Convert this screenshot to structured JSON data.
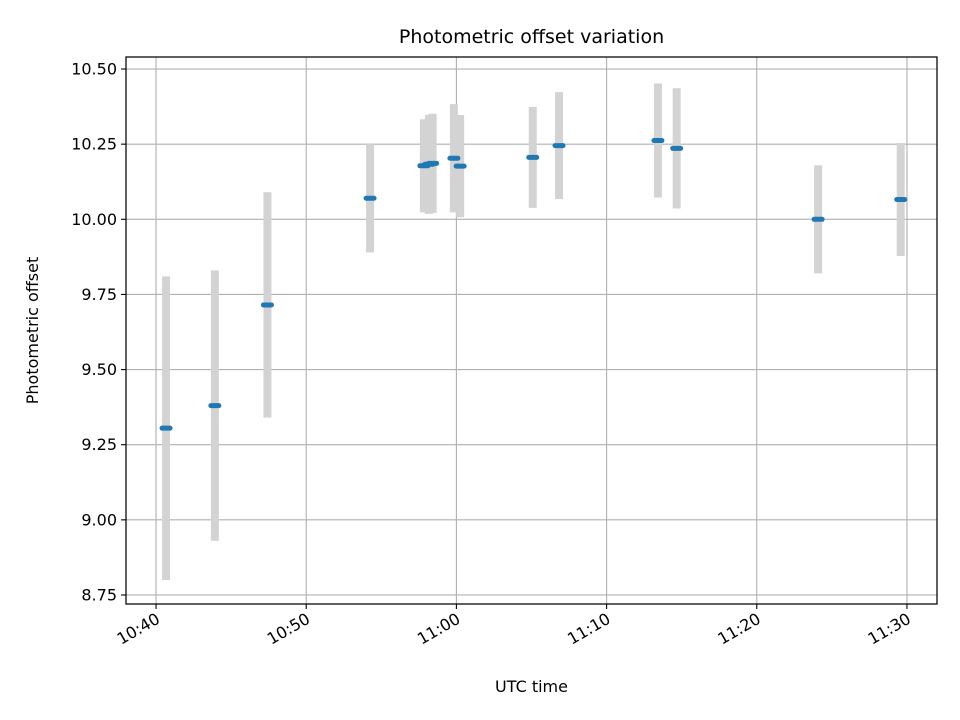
{
  "chart_data": {
    "type": "scatter",
    "title": "Photometric offset variation",
    "xlabel": "UTC time",
    "ylabel": "Photometric offset",
    "x_unit": "HH:MM (UTC)",
    "xlim": [
      "10:38",
      "11:32"
    ],
    "ylim": [
      8.72,
      10.54
    ],
    "x_ticks": [
      "10:40",
      "10:50",
      "11:00",
      "11:10",
      "11:20",
      "11:30"
    ],
    "y_ticks": [
      "8.75",
      "9.00",
      "9.25",
      "9.50",
      "9.75",
      "10.00",
      "10.25",
      "10.50"
    ],
    "grid": true,
    "legend": "none",
    "colors": {
      "points": "#1f77b4",
      "error_bars": "#d3d3d3",
      "grid": "#b0b0b0"
    },
    "points": [
      {
        "x": "10:40:40",
        "y": 9.305,
        "yerr": 0.505
      },
      {
        "x": "10:43:55",
        "y": 9.38,
        "yerr": 0.45
      },
      {
        "x": "10:47:25",
        "y": 9.715,
        "yerr": 0.375
      },
      {
        "x": "10:54:15",
        "y": 10.07,
        "yerr": 0.18
      },
      {
        "x": "10:57:50",
        "y": 10.178,
        "yerr": 0.155
      },
      {
        "x": "10:58:10",
        "y": 10.183,
        "yerr": 0.165
      },
      {
        "x": "10:58:25",
        "y": 10.186,
        "yerr": 0.165
      },
      {
        "x": "10:59:50",
        "y": 10.203,
        "yerr": 0.18
      },
      {
        "x": "11:00:15",
        "y": 10.177,
        "yerr": 0.17
      },
      {
        "x": "11:05:05",
        "y": 10.206,
        "yerr": 0.168
      },
      {
        "x": "11:06:50",
        "y": 10.245,
        "yerr": 0.178
      },
      {
        "x": "11:13:25",
        "y": 10.262,
        "yerr": 0.19
      },
      {
        "x": "11:14:40",
        "y": 10.236,
        "yerr": 0.2
      },
      {
        "x": "11:24:05",
        "y": 10.0,
        "yerr": 0.18
      },
      {
        "x": "11:29:35",
        "y": 10.066,
        "yerr": 0.188
      }
    ]
  }
}
